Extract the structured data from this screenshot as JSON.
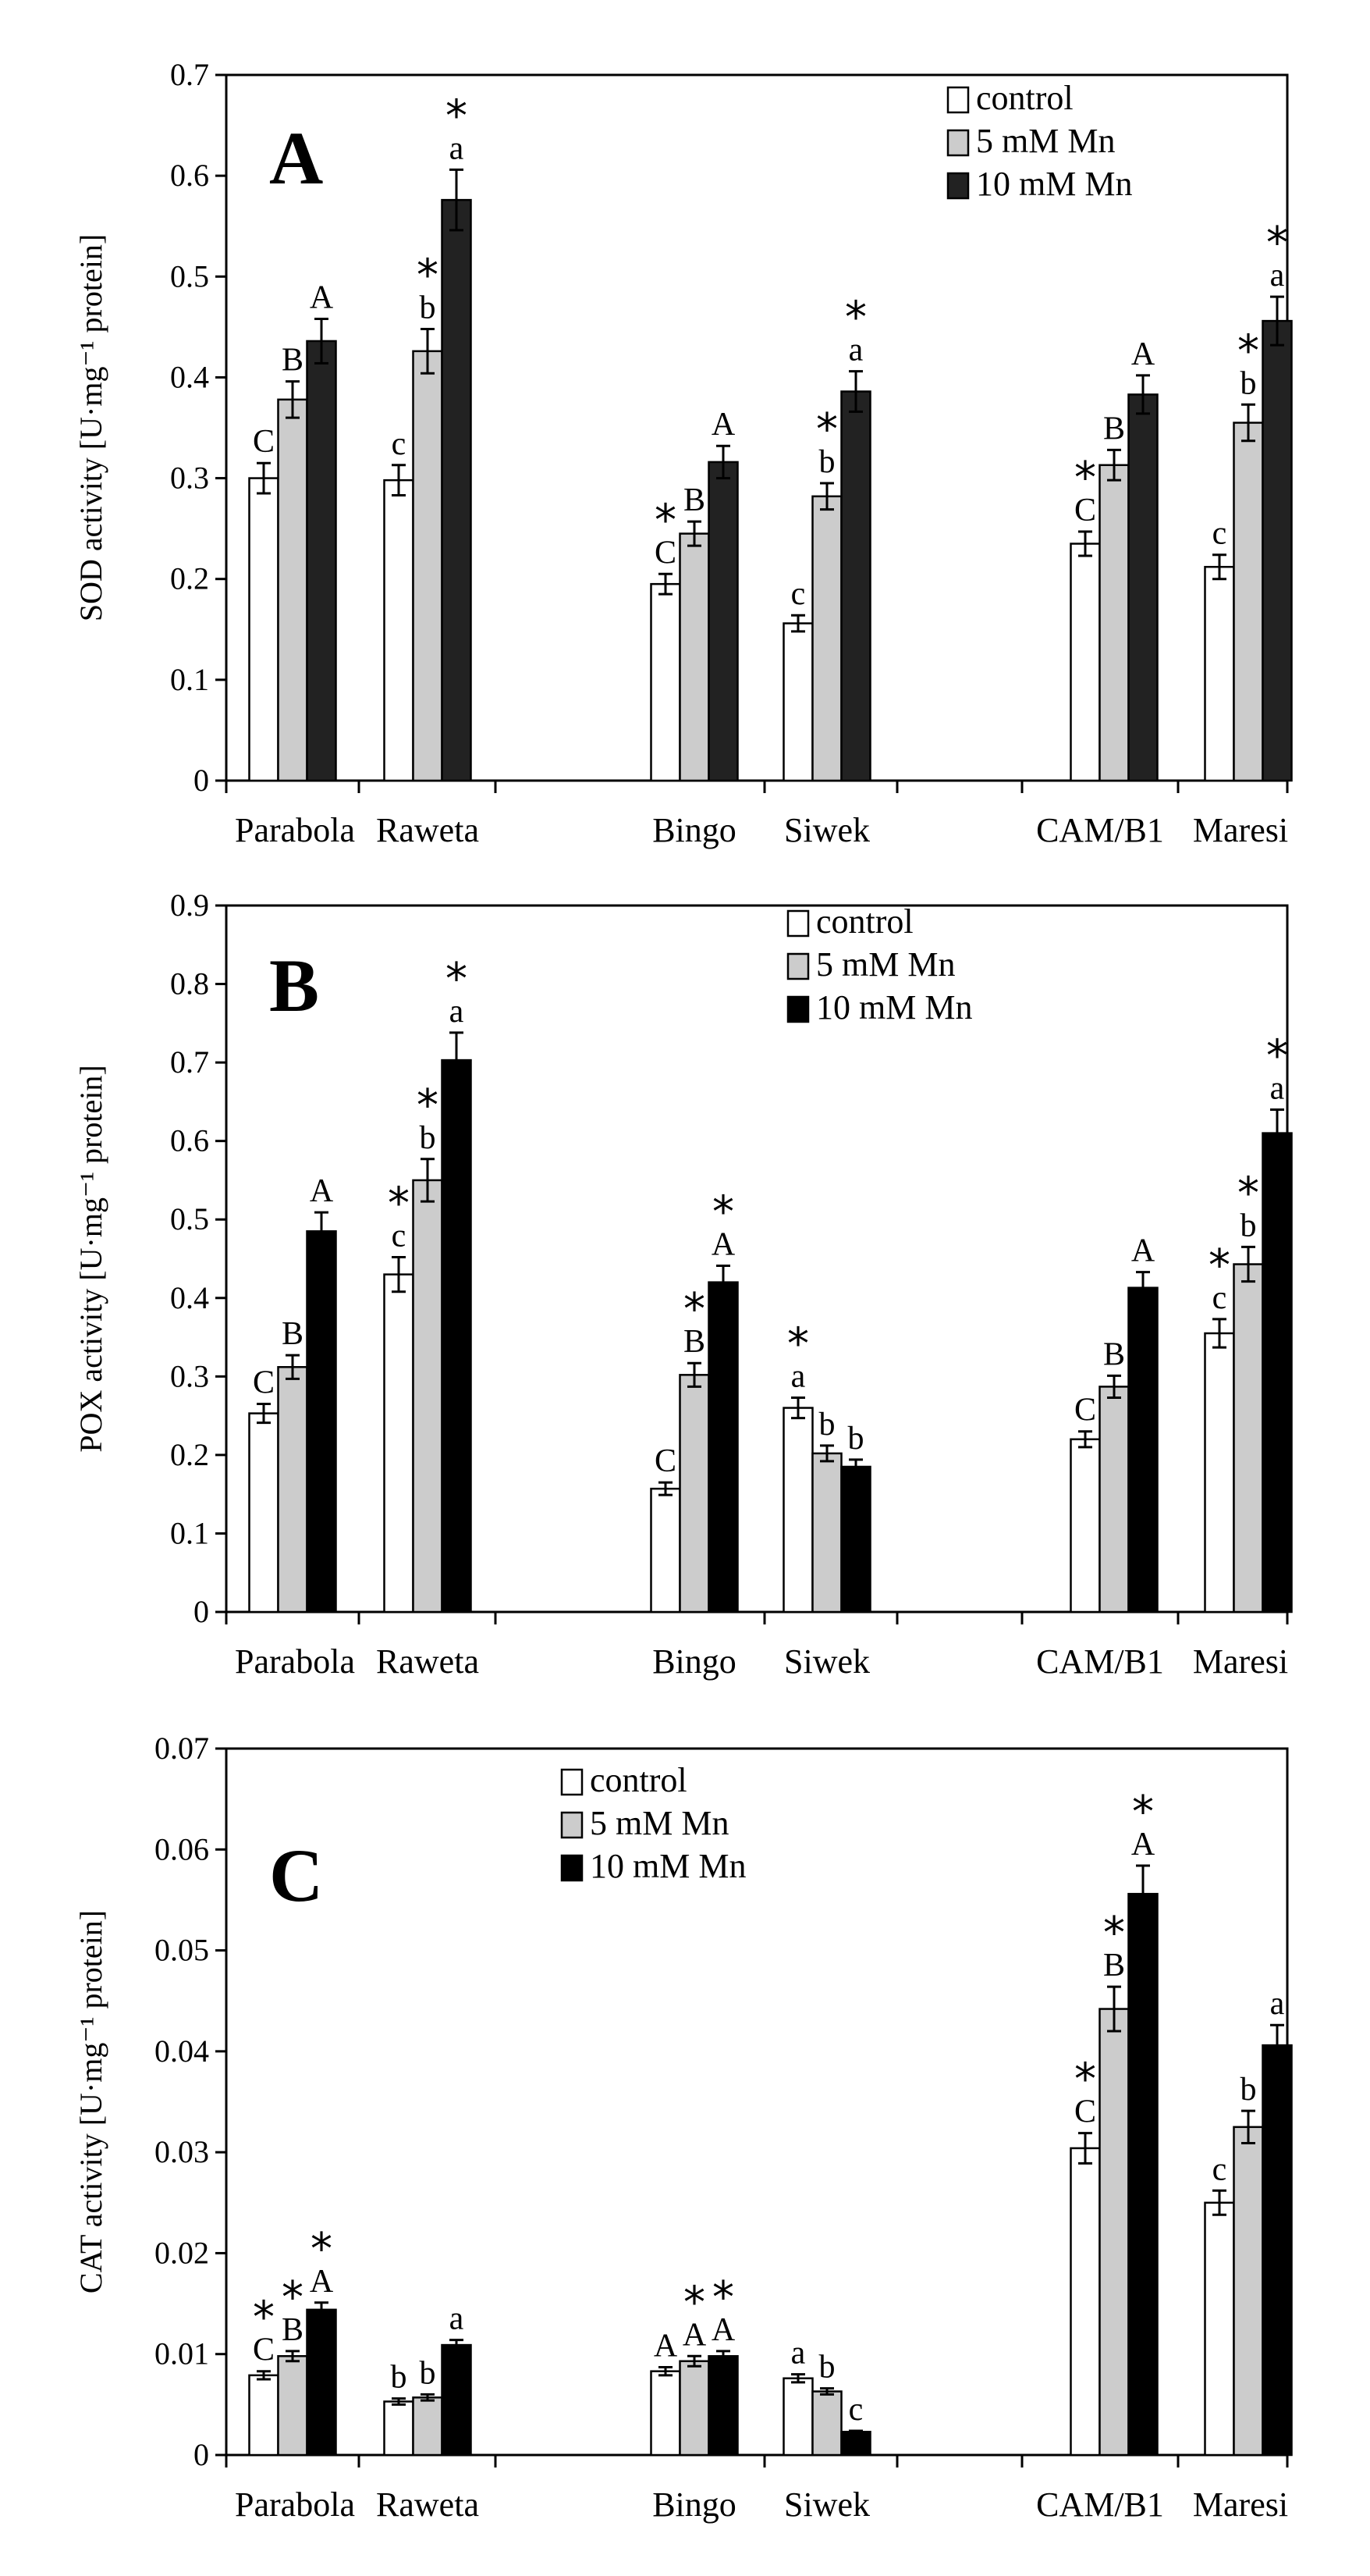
{
  "chart_data": [
    {
      "type": "bar",
      "panel": "A",
      "ylabel": "SOD activity [U·mg⁻¹ protein]",
      "ylim": [
        0,
        0.7
      ],
      "yticks": [
        "0",
        "0.1",
        "0.2",
        "0.3",
        "0.4",
        "0.5",
        "0.6",
        "0.7"
      ],
      "categories": [
        "Parabola",
        "Raweta",
        "Bingo",
        "Siwek",
        "CAM/B1",
        "Maresi"
      ],
      "legend": [
        "control",
        "5 mM Mn",
        "10 mM Mn"
      ],
      "series": [
        {
          "name": "control",
          "color": "#ffffff",
          "values": [
            0.3,
            0.298,
            0.195,
            0.156,
            0.235,
            0.212
          ],
          "errors": [
            0.015,
            0.015,
            0.01,
            0.008,
            0.012,
            0.012
          ]
        },
        {
          "name": "5 mM Mn",
          "color": "#cccccc",
          "values": [
            0.378,
            0.426,
            0.245,
            0.282,
            0.313,
            0.355
          ],
          "errors": [
            0.018,
            0.022,
            0.012,
            0.013,
            0.015,
            0.018
          ]
        },
        {
          "name": "10 mM Mn",
          "color": "#222222",
          "values": [
            0.436,
            0.576,
            0.316,
            0.386,
            0.383,
            0.456
          ],
          "errors": [
            0.022,
            0.03,
            0.016,
            0.02,
            0.019,
            0.024
          ]
        }
      ],
      "annotations": [
        [
          [
            "C",
            ""
          ],
          [
            "B",
            ""
          ],
          [
            "A",
            ""
          ]
        ],
        [
          [
            "c",
            ""
          ],
          [
            "b",
            "*"
          ],
          [
            "a",
            "*"
          ]
        ],
        [
          [
            "C",
            "*"
          ],
          [
            "B",
            ""
          ],
          [
            "A",
            ""
          ]
        ],
        [
          [
            "c",
            ""
          ],
          [
            "b",
            "*"
          ],
          [
            "a",
            "*"
          ]
        ],
        [
          [
            "C",
            "*"
          ],
          [
            "B",
            ""
          ],
          [
            "A",
            ""
          ]
        ],
        [
          [
            "c",
            ""
          ],
          [
            "b",
            "*"
          ],
          [
            "a",
            "*"
          ]
        ]
      ]
    },
    {
      "type": "bar",
      "panel": "B",
      "ylabel": "POX activity [U·mg⁻¹ protein]",
      "ylim": [
        0,
        0.9
      ],
      "yticks": [
        "0",
        "0.1",
        "0.2",
        "0.3",
        "0.4",
        "0.5",
        "0.6",
        "0.7",
        "0.8",
        "0.9"
      ],
      "categories": [
        "Parabola",
        "Raweta",
        "Bingo",
        "Siwek",
        "CAM/B1",
        "Maresi"
      ],
      "legend": [
        "control",
        "5 mM Mn",
        "10 mM Mn"
      ],
      "series": [
        {
          "name": "control",
          "color": "#ffffff",
          "values": [
            0.253,
            0.43,
            0.157,
            0.26,
            0.22,
            0.355
          ],
          "errors": [
            0.012,
            0.022,
            0.008,
            0.013,
            0.01,
            0.018
          ]
        },
        {
          "name": "5 mM Mn",
          "color": "#cccccc",
          "values": [
            0.312,
            0.55,
            0.302,
            0.202,
            0.287,
            0.443
          ],
          "errors": [
            0.015,
            0.027,
            0.015,
            0.01,
            0.014,
            0.022
          ]
        },
        {
          "name": "10 mM Mn",
          "color": "#000000",
          "values": [
            0.485,
            0.703,
            0.42,
            0.185,
            0.413,
            0.61
          ],
          "errors": [
            0.024,
            0.035,
            0.021,
            0.009,
            0.02,
            0.03
          ]
        }
      ],
      "annotations": [
        [
          [
            "C",
            ""
          ],
          [
            "B",
            ""
          ],
          [
            "A",
            ""
          ]
        ],
        [
          [
            "c",
            "*"
          ],
          [
            "b",
            "*"
          ],
          [
            "a",
            "*"
          ]
        ],
        [
          [
            "C",
            ""
          ],
          [
            "B",
            "*"
          ],
          [
            "A",
            "*"
          ]
        ],
        [
          [
            "a",
            "*"
          ],
          [
            "b",
            ""
          ],
          [
            "b",
            ""
          ]
        ],
        [
          [
            "C",
            ""
          ],
          [
            "B",
            ""
          ],
          [
            "A",
            ""
          ]
        ],
        [
          [
            "c",
            "*"
          ],
          [
            "b",
            "*"
          ],
          [
            "a",
            "*"
          ]
        ]
      ]
    },
    {
      "type": "bar",
      "panel": "C",
      "ylabel": "CAT activity [U·mg⁻¹ protein]",
      "ylim": [
        0,
        0.07
      ],
      "yticks": [
        "0",
        "0.01",
        "0.02",
        "0.03",
        "0.04",
        "0.05",
        "0.06",
        "0.07"
      ],
      "categories": [
        "Parabola",
        "Raweta",
        "Bingo",
        "Siwek",
        "CAM/B1",
        "Maresi"
      ],
      "legend": [
        "control",
        "5 mM Mn",
        "10 mM Mn"
      ],
      "series": [
        {
          "name": "control",
          "color": "#ffffff",
          "values": [
            0.0079,
            0.0053,
            0.0083,
            0.0076,
            0.0304,
            0.025
          ],
          "errors": [
            0.0004,
            0.0003,
            0.0004,
            0.0004,
            0.0015,
            0.0012
          ]
        },
        {
          "name": "5 mM Mn",
          "color": "#cccccc",
          "values": [
            0.0098,
            0.0057,
            0.0093,
            0.0063,
            0.0442,
            0.0325
          ],
          "errors": [
            0.0005,
            0.0003,
            0.0005,
            0.0003,
            0.0022,
            0.0016
          ]
        },
        {
          "name": "10 mM Mn",
          "color": "#000000",
          "values": [
            0.0144,
            0.0109,
            0.0098,
            0.0023,
            0.0556,
            0.0406
          ],
          "errors": [
            0.0007,
            0.0005,
            0.0005,
            0.0001,
            0.0028,
            0.002
          ]
        }
      ],
      "annotations": [
        [
          [
            "C",
            "*"
          ],
          [
            "B",
            "*"
          ],
          [
            "A",
            "*"
          ]
        ],
        [
          [
            "b",
            ""
          ],
          [
            "b",
            ""
          ],
          [
            "a",
            ""
          ]
        ],
        [
          [
            "A",
            ""
          ],
          [
            "A",
            "*"
          ],
          [
            "A",
            "*"
          ]
        ],
        [
          [
            "a",
            ""
          ],
          [
            "b",
            ""
          ],
          [
            "c",
            ""
          ]
        ],
        [
          [
            "C",
            "*"
          ],
          [
            "B",
            "*"
          ],
          [
            "A",
            "*"
          ]
        ],
        [
          [
            "c",
            ""
          ],
          [
            "b",
            ""
          ],
          [
            "a",
            ""
          ]
        ]
      ]
    }
  ]
}
